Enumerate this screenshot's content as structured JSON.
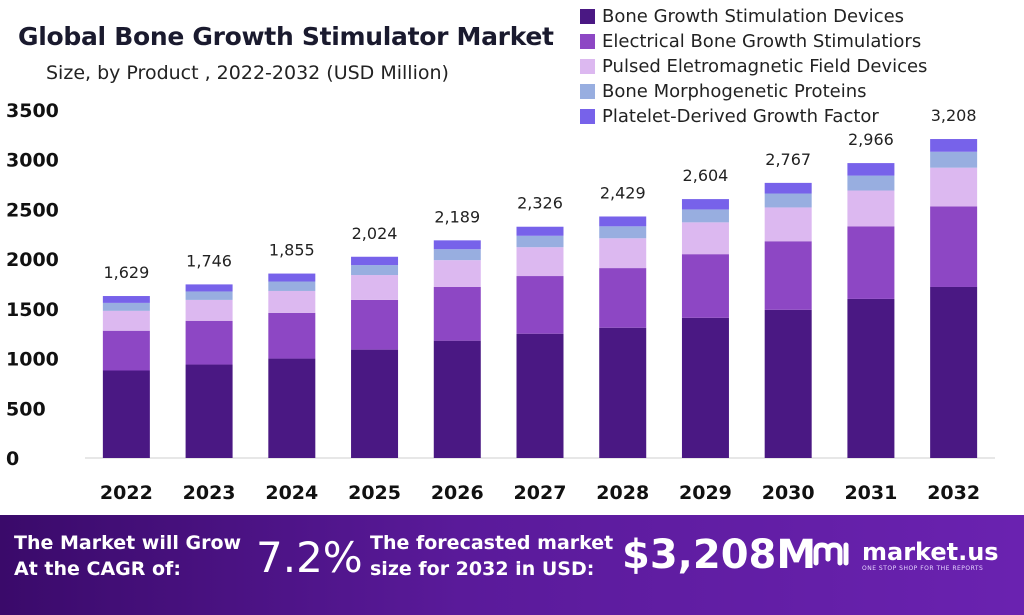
{
  "header": {
    "title": "Global Bone Growth Stimulator Market",
    "subtitle": "Size, by Product , 2022-2032 (USD Million)"
  },
  "colors": {
    "segments": [
      "#4a1883",
      "#8d47c4",
      "#dcb8f0",
      "#98aee0",
      "#7762ea"
    ],
    "footer_start": "#3a0a6a",
    "footer_end": "#6a22b0"
  },
  "chart_data": {
    "type": "bar",
    "stacked": true,
    "categories": [
      "2022",
      "2023",
      "2024",
      "2025",
      "2026",
      "2027",
      "2028",
      "2029",
      "2030",
      "2031",
      "2032"
    ],
    "totals": [
      1629,
      1746,
      1855,
      2024,
      2189,
      2326,
      2429,
      2604,
      2767,
      2966,
      3208
    ],
    "total_labels": [
      "1,629",
      "1,746",
      "1,855",
      "2,024",
      "2,189",
      "2,326",
      "2,429",
      "2,604",
      "2,767",
      "2,966",
      "3,208"
    ],
    "series": [
      {
        "name": "Bone Growth Stimulation Devices",
        "values": [
          880,
          940,
          1000,
          1090,
          1180,
          1250,
          1310,
          1410,
          1490,
          1600,
          1720
        ]
      },
      {
        "name": "Electrical Bone Growth Stimulatiors",
        "values": [
          400,
          440,
          460,
          500,
          540,
          580,
          600,
          640,
          690,
          730,
          810
        ]
      },
      {
        "name": "Pulsed Eletromagnetic Field Devices",
        "values": [
          200,
          210,
          220,
          250,
          270,
          290,
          300,
          320,
          340,
          360,
          390
        ]
      },
      {
        "name": "Bone Morphogenetic Proteins",
        "values": [
          80,
          85,
          95,
          100,
          110,
          115,
          120,
          130,
          140,
          150,
          160
        ]
      },
      {
        "name": "Platelet-Derived Growth Factor",
        "values": [
          69,
          71,
          80,
          84,
          89,
          91,
          99,
          104,
          107,
          126,
          128
        ]
      }
    ],
    "ylim": [
      0,
      3500
    ],
    "yticks": [
      0,
      500,
      1000,
      1500,
      2000,
      2500,
      3000,
      3500
    ],
    "grid": false,
    "legend_position": "top-right"
  },
  "footer": {
    "cagr_line1": "The Market will Grow",
    "cagr_line2": "At the CAGR of:",
    "cagr_value": "7.2%",
    "forecast_line1": "The forecasted market",
    "forecast_line2": "size for 2032 in USD:",
    "forecast_value": "$3,208M",
    "brand_name": "market.us",
    "brand_tagline": "ONE STOP SHOP FOR THE REPORTS"
  }
}
